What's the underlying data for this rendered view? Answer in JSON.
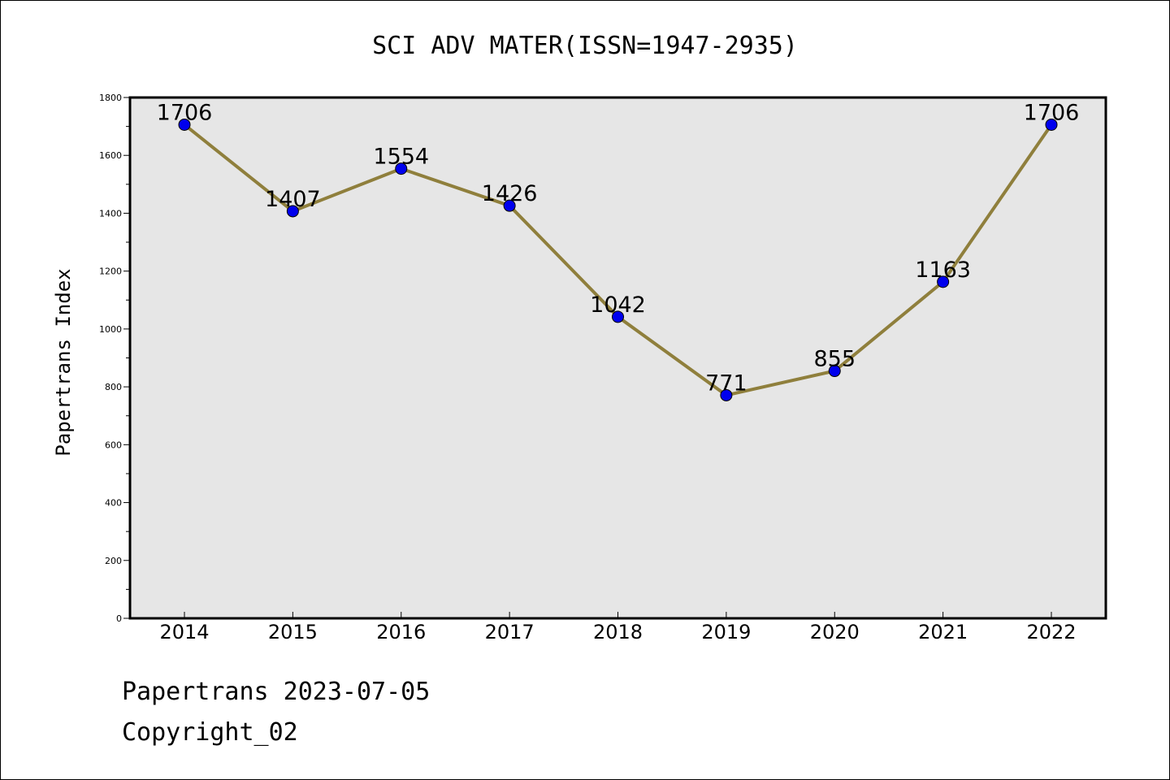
{
  "chart_data": {
    "type": "line",
    "title": "SCI ADV MATER(ISSN=1947-2935)",
    "xlabel": "",
    "ylabel": "Papertrans Index",
    "categories": [
      "2014",
      "2015",
      "2016",
      "2017",
      "2018",
      "2019",
      "2020",
      "2021",
      "2022"
    ],
    "series": [
      {
        "values": [
          1706,
          1407,
          1554,
          1426,
          1042,
          771,
          855,
          1163,
          1706
        ]
      }
    ],
    "ylim": [
      0,
      1800
    ],
    "yticks": [
      0,
      200,
      400,
      600,
      800,
      1000,
      1200,
      1400,
      1600,
      1800
    ],
    "grid": false,
    "line_color": "#8f7f3c",
    "marker_color": "#0000ee",
    "plot_background": "#e6e6e6"
  },
  "footer": {
    "line1": "Papertrans 2023-07-05",
    "line2": "Copyright_02"
  }
}
